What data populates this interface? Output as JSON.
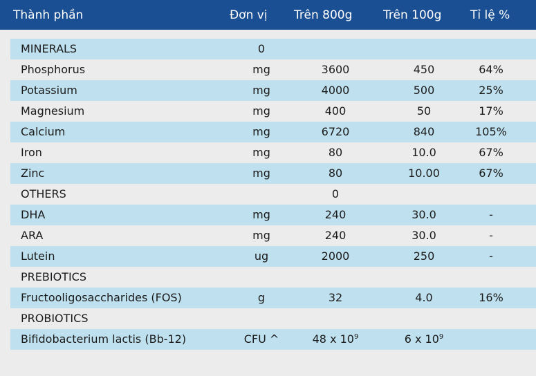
{
  "header": {
    "col_name": "Thành phần",
    "col_unit": "Đơn vị",
    "col_800": "Trên 800g",
    "col_100": "Trên 100g",
    "col_pct": "Tỉ lệ %"
  },
  "rows": [
    {
      "name": "MINERALS",
      "unit": "0",
      "v800": "",
      "v100": "",
      "pct": ""
    },
    {
      "name": "Phosphorus",
      "unit": "mg",
      "v800": "3600",
      "v100": "450",
      "pct": "64%"
    },
    {
      "name": "Potassium",
      "unit": "mg",
      "v800": "4000",
      "v100": "500",
      "pct": "25%"
    },
    {
      "name": "Magnesium",
      "unit": "mg",
      "v800": "400",
      "v100": "50",
      "pct": "17%"
    },
    {
      "name": "Calcium",
      "unit": "mg",
      "v800": "6720",
      "v100": "840",
      "pct": "105%"
    },
    {
      "name": "Iron",
      "unit": "mg",
      "v800": "80",
      "v100": "10.0",
      "pct": "67%"
    },
    {
      "name": "Zinc",
      "unit": "mg",
      "v800": "80",
      "v100": "10.00",
      "pct": "67%"
    },
    {
      "name": "OTHERS",
      "unit": "",
      "v800": "0",
      "v100": "",
      "pct": ""
    },
    {
      "name": "DHA",
      "unit": "mg",
      "v800": "240",
      "v100": "30.0",
      "pct": "-"
    },
    {
      "name": "ARA",
      "unit": "mg",
      "v800": "240",
      "v100": "30.0",
      "pct": "-"
    },
    {
      "name": "Lutein",
      "unit": "ug",
      "v800": "2000",
      "v100": "250",
      "pct": "-"
    },
    {
      "name": "PREBIOTICS",
      "unit": "",
      "v800": "",
      "v100": "",
      "pct": ""
    },
    {
      "name": "Fructooligosaccharides (FOS)",
      "unit": "g",
      "v800": "32",
      "v100": "4.0",
      "pct": "16%"
    },
    {
      "name": "PROBIOTICS",
      "unit": "",
      "v800": "",
      "v100": "",
      "pct": ""
    },
    {
      "name": "Bifidobacterium lactis (Bb-12)",
      "unit": "CFU ^",
      "v800": "48 x 10",
      "v800_exp": "9",
      "v100": "6 x 10",
      "v100_exp": "9",
      "pct": ""
    }
  ],
  "colors": {
    "header_bg": "#1b4f93",
    "row_shade": "#bfe0ee",
    "page_bg": "#ececec"
  }
}
